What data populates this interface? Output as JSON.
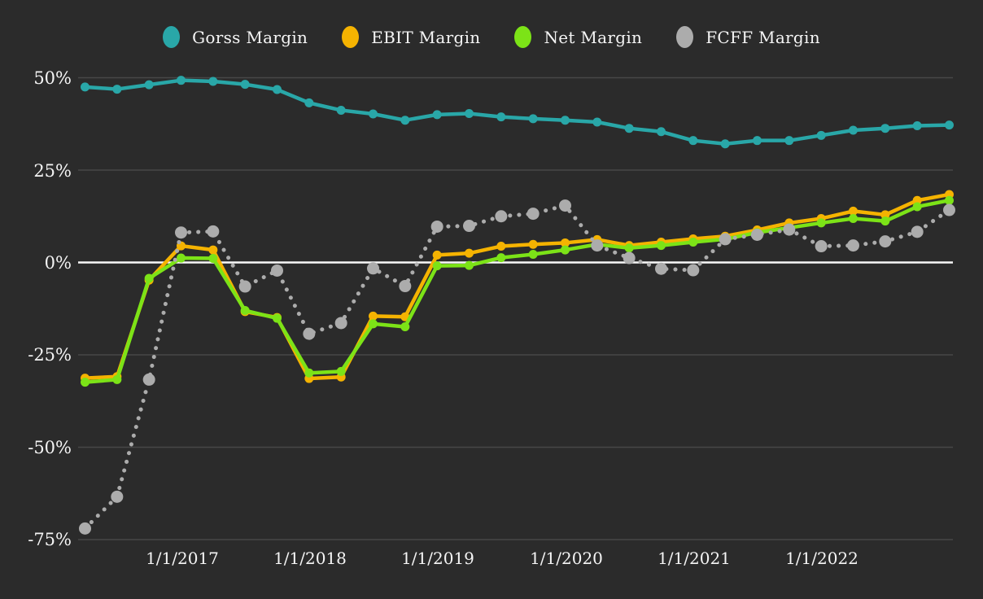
{
  "chart_data": {
    "type": "line",
    "title": "",
    "xlabel": "",
    "ylabel": "",
    "y_unit": "%",
    "ylim": [
      -80,
      55
    ],
    "grid": true,
    "zero_line_highlighted": true,
    "legend_position": "top-center",
    "y_ticks": [
      "50%",
      "25%",
      "0%",
      "-25%",
      "-50%",
      "-75%"
    ],
    "y_grid_values": [
      50,
      25,
      0,
      -25,
      -50,
      -75
    ],
    "x_tick_labels": [
      "1/1/2017",
      "1/1/2018",
      "1/1/2019",
      "1/1/2020",
      "1/1/2021",
      "1/1/2022"
    ],
    "x": [
      "4/1/2016",
      "7/1/2016",
      "10/1/2016",
      "1/1/2017",
      "4/1/2017",
      "7/1/2017",
      "10/1/2017",
      "1/1/2018",
      "4/1/2018",
      "7/1/2018",
      "10/1/2018",
      "1/1/2019",
      "4/1/2019",
      "7/1/2019",
      "10/1/2019",
      "1/1/2020",
      "4/1/2020",
      "7/1/2020",
      "10/1/2020",
      "1/1/2021",
      "4/1/2021",
      "7/1/2021",
      "10/1/2021",
      "1/1/2022",
      "4/1/2022",
      "7/1/2022",
      "10/1/2022",
      "1/1/2023"
    ],
    "series": [
      {
        "name": "Gorss Margin",
        "color": "#29a7a8",
        "line_style": "solid",
        "marker": "circle",
        "values": [
          47.5,
          46.9,
          48.1,
          49.3,
          49.0,
          48.2,
          46.8,
          43.2,
          41.2,
          40.2,
          38.5,
          40.0,
          40.3,
          39.4,
          38.9,
          38.5,
          38.0,
          36.3,
          35.4,
          33.0,
          32.1,
          33.0,
          33.0,
          34.4,
          35.8,
          36.3,
          37.0,
          37.2
        ]
      },
      {
        "name": "EBIT Margin",
        "color": "#f5b301",
        "line_style": "solid",
        "marker": "circle",
        "values": [
          -31.3,
          -30.9,
          -4.8,
          4.5,
          3.4,
          -13.3,
          -14.9,
          -31.4,
          -31.0,
          -14.5,
          -14.7,
          2.0,
          2.5,
          4.4,
          4.9,
          5.3,
          6.2,
          4.6,
          5.5,
          6.4,
          7.1,
          8.8,
          10.7,
          11.9,
          13.9,
          12.9,
          16.8,
          18.4
        ]
      },
      {
        "name": "Net Margin",
        "color": "#7ce317",
        "line_style": "solid",
        "marker": "circle",
        "values": [
          -32.4,
          -31.7,
          -4.3,
          1.2,
          1.1,
          -13.0,
          -15.1,
          -29.9,
          -29.5,
          -16.6,
          -17.4,
          -0.9,
          -0.8,
          1.3,
          2.2,
          3.4,
          4.9,
          3.9,
          4.6,
          5.5,
          6.3,
          8.1,
          9.4,
          10.7,
          11.9,
          11.2,
          15.1,
          16.8
        ]
      },
      {
        "name": "FCFF Margin",
        "color": "#acacac",
        "line_style": "dotted",
        "marker": "circle-large",
        "values": [
          -72.0,
          -63.4,
          -31.7,
          8.1,
          8.4,
          -6.5,
          -2.2,
          -19.3,
          -16.4,
          -1.6,
          -6.4,
          9.7,
          9.9,
          12.5,
          13.2,
          15.4,
          4.6,
          1.2,
          -1.7,
          -2.1,
          6.3,
          7.5,
          8.9,
          4.4,
          4.6,
          5.7,
          8.3,
          14.2
        ]
      }
    ],
    "colors": {
      "background": "#2b2b2b",
      "gridline": "#474747",
      "zero_line": "#f8f8f8",
      "tick_text": "#f5f5f5"
    }
  }
}
